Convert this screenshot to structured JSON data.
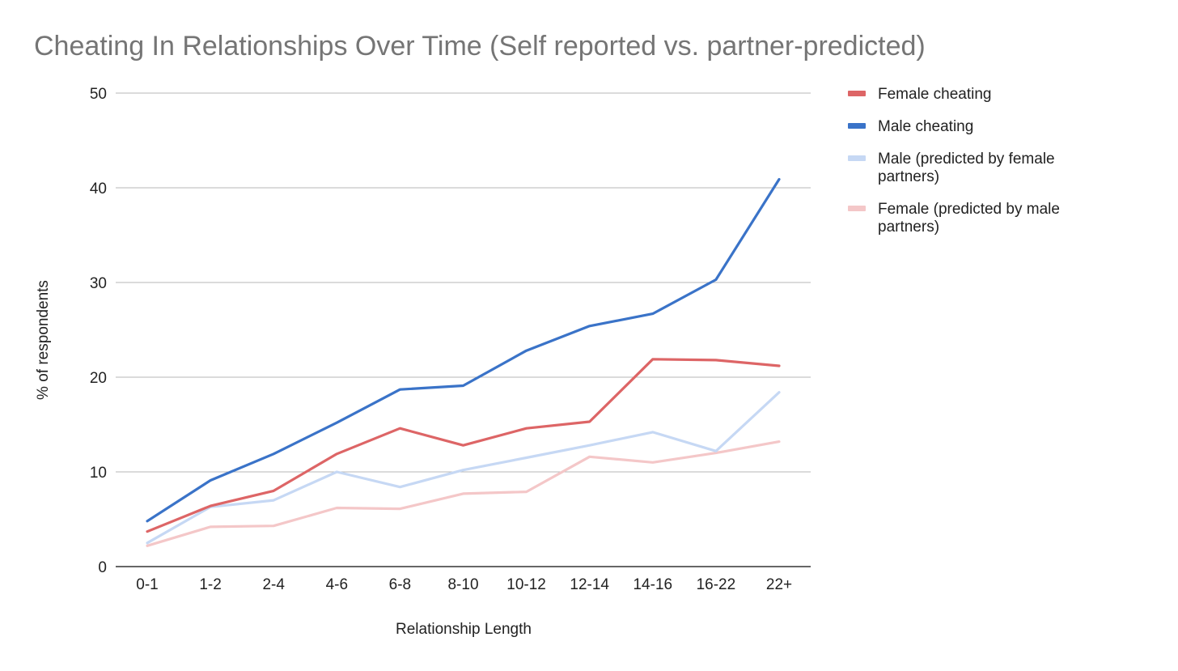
{
  "chart_data": {
    "type": "line",
    "title": "Cheating In Relationships Over Time (Self reported vs. partner-predicted)",
    "xlabel": "Relationship Length",
    "ylabel": "% of respondents",
    "categories": [
      "0-1",
      "1-2",
      "2-4",
      "4-6",
      "6-8",
      "8-10",
      "10-12",
      "12-14",
      "14-16",
      "16-22",
      "22+"
    ],
    "ylim": [
      0,
      50
    ],
    "yticks": [
      0,
      10,
      20,
      30,
      40,
      50
    ],
    "grid": true,
    "legend_position": "right",
    "series": [
      {
        "name": "Female cheating",
        "legend_lines": [
          "Female cheating"
        ],
        "color": "#dd6566",
        "values": [
          3.7,
          6.4,
          8.0,
          11.9,
          14.6,
          12.8,
          14.6,
          15.3,
          21.9,
          21.8,
          21.2
        ]
      },
      {
        "name": "Male cheating",
        "legend_lines": [
          "Male cheating"
        ],
        "color": "#3a73c8",
        "values": [
          4.8,
          9.1,
          11.9,
          15.2,
          18.7,
          19.1,
          22.8,
          25.4,
          26.7,
          30.3,
          40.9
        ]
      },
      {
        "name": "Male (predicted by female partners)",
        "legend_lines": [
          "Male (predicted by female",
          "partners)"
        ],
        "color": "#c6d8f4",
        "values": [
          2.5,
          6.3,
          7.0,
          10.0,
          8.4,
          10.2,
          11.5,
          12.8,
          14.2,
          12.2,
          18.4
        ]
      },
      {
        "name": "Female (predicted by male partners)",
        "legend_lines": [
          "Female (predicted by male",
          "partners)"
        ],
        "color": "#f4c7c8",
        "values": [
          2.2,
          4.2,
          4.3,
          6.2,
          6.1,
          7.7,
          7.9,
          11.6,
          11.0,
          12.0,
          13.2
        ]
      }
    ]
  }
}
